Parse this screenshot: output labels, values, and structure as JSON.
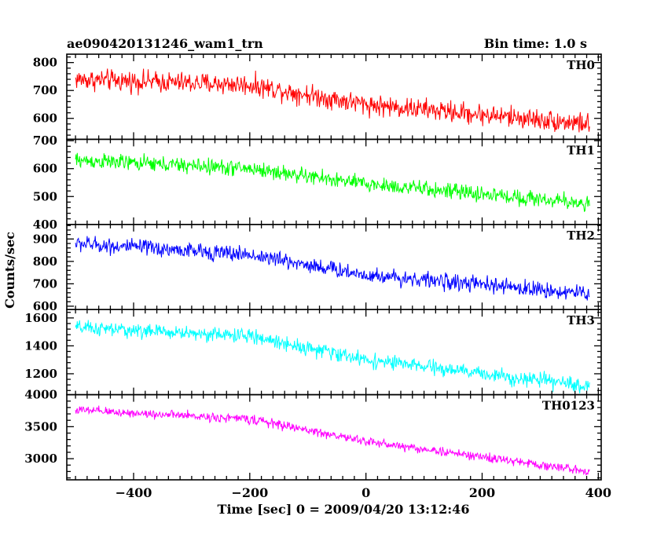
{
  "header": {
    "title": "ae090420131246_wam1_trn",
    "bin_time": "Bin time: 1.0 s"
  },
  "chart_data": {
    "type": "line",
    "xlabel": "Time [sec] 0 = 2009/04/20 13:12:46",
    "ylabel": "Counts/sec",
    "xlim": [
      -515,
      405
    ],
    "x_ticks": [
      -400,
      -200,
      0,
      200,
      400
    ],
    "x_tick_labels": [
      "−400",
      "−200",
      "0",
      "200",
      "400"
    ],
    "x_range": [
      -500,
      385
    ],
    "series": [
      {
        "name": "TH0",
        "color": "#ff0000",
        "ylim": [
          525,
          830
        ],
        "y_ticks": [
          600,
          700,
          800
        ],
        "y_tick_labels": [
          "600",
          "700",
          "800"
        ],
        "trend": [
          [
            -500,
            740
          ],
          [
            -200,
            720
          ],
          [
            0,
            650
          ],
          [
            385,
            580
          ]
        ],
        "noise": 40
      },
      {
        "name": "TH1",
        "color": "#00ff00",
        "ylim": [
          400,
          705
        ],
        "y_ticks": [
          400,
          500,
          600,
          700
        ],
        "y_tick_labels": [
          "400",
          "500",
          "600",
          "700"
        ],
        "trend": [
          [
            -500,
            630
          ],
          [
            -200,
            600
          ],
          [
            0,
            545
          ],
          [
            385,
            475
          ]
        ],
        "noise": 30
      },
      {
        "name": "TH2",
        "color": "#0000ff",
        "ylim": [
          585,
          965
        ],
        "y_ticks": [
          600,
          700,
          800,
          900
        ],
        "y_tick_labels": [
          "600",
          "700",
          "800",
          "900"
        ],
        "trend": [
          [
            -500,
            880
          ],
          [
            -200,
            830
          ],
          [
            0,
            740
          ],
          [
            385,
            655
          ]
        ],
        "noise": 38
      },
      {
        "name": "TH3",
        "color": "#00ffff",
        "ylim": [
          1050,
          1660
        ],
        "y_ticks": [
          1200,
          1400,
          1600
        ],
        "y_tick_labels": [
          "1200",
          "1400",
          "1600"
        ],
        "trend": [
          [
            -500,
            1530
          ],
          [
            -200,
            1470
          ],
          [
            0,
            1300
          ],
          [
            385,
            1110
          ]
        ],
        "noise": 55
      },
      {
        "name": "TH0123",
        "color": "#ff00ff",
        "ylim": [
          2670,
          4000
        ],
        "y_ticks": [
          3000,
          3500,
          4000
        ],
        "y_tick_labels": [
          "3000",
          "3500",
          "4000"
        ],
        "trend": [
          [
            -500,
            3760
          ],
          [
            -200,
            3620
          ],
          [
            0,
            3270
          ],
          [
            385,
            2800
          ]
        ],
        "noise": 75
      }
    ]
  }
}
